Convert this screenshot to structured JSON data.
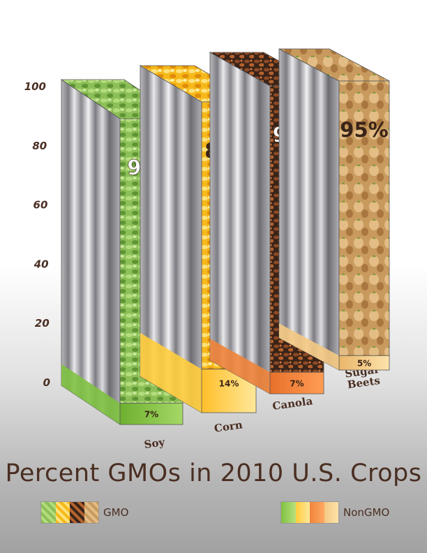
{
  "chart_data": {
    "type": "bar",
    "title": "Percent GMOs in 2010 U.S. Crops",
    "categories": [
      "Soy",
      "Corn",
      "Canola",
      "Sugar Beets"
    ],
    "ylim": [
      0,
      100
    ],
    "yticks": [
      "0",
      "20",
      "40",
      "60",
      "80",
      "100"
    ],
    "series": [
      {
        "name": "GMO",
        "values": [
          93,
          86,
          93,
          95
        ],
        "labels": [
          "93%",
          "86%",
          "93%",
          "95%"
        ]
      },
      {
        "name": "NonGMO",
        "values": [
          7,
          14,
          7,
          5
        ],
        "labels": [
          "7%",
          "14%",
          "7%",
          "5%"
        ]
      }
    ],
    "legend": {
      "position": "bottom",
      "gmo_label": "GMO",
      "nongmo_label": "NonGMO"
    },
    "colors": {
      "gmo": [
        "#8cbf57",
        "#f6b81a",
        "#6b3a22",
        "#c99a5e"
      ],
      "nongmo": [
        "#7fc241",
        "#ffcd3c",
        "#f0843a",
        "#f4c983"
      ],
      "text": "#4a2e22"
    }
  }
}
